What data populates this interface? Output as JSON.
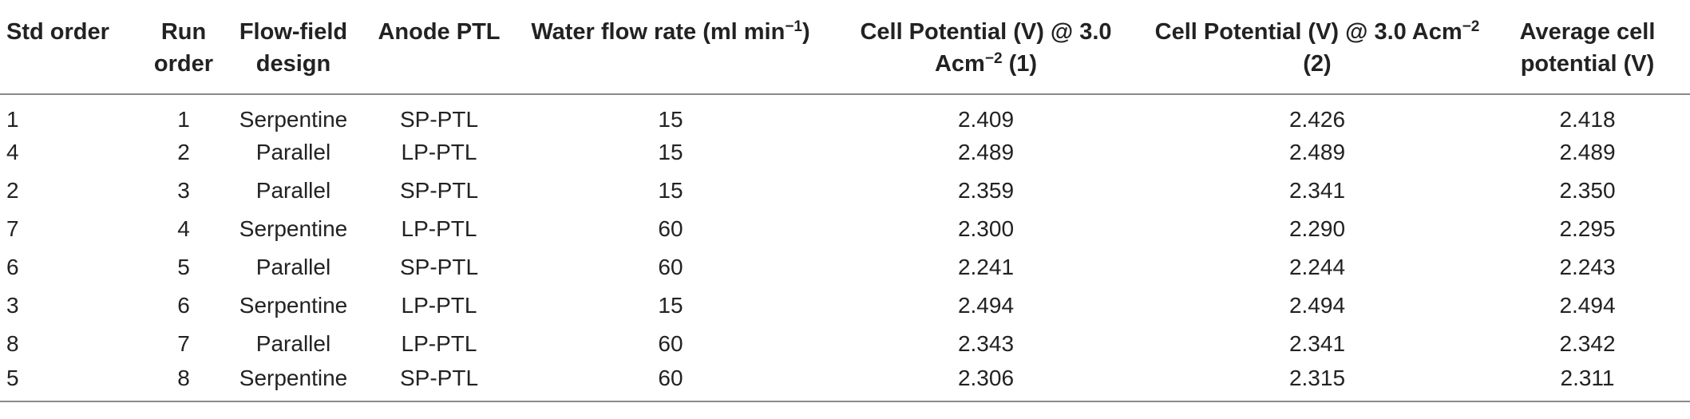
{
  "headers": [
    {
      "text": "Std order",
      "sup": "",
      "after": ""
    },
    {
      "text": "Run order",
      "sup": "",
      "after": ""
    },
    {
      "text": "Flow-field design",
      "sup": "",
      "after": ""
    },
    {
      "text": "Anode PTL",
      "sup": "",
      "after": ""
    },
    {
      "text": "Water flow rate (ml min",
      "sup": "−1",
      "after": ")"
    },
    {
      "text": "Cell Potential (V) @ 3.0 Acm",
      "sup": "−2",
      "after": " (1)"
    },
    {
      "text": "Cell Potential (V) @ 3.0 Acm",
      "sup": "−2",
      "after": " (2)"
    },
    {
      "text": "Average cell potential (V)",
      "sup": "",
      "after": ""
    }
  ],
  "rows": [
    [
      "1",
      "1",
      "Serpentine",
      "SP-PTL",
      "15",
      "2.409",
      "2.426",
      "2.418"
    ],
    [
      "4",
      "2",
      "Parallel",
      "LP-PTL",
      "15",
      "2.489",
      "2.489",
      "2.489"
    ],
    [
      "2",
      "3",
      "Parallel",
      "SP-PTL",
      "15",
      "2.359",
      "2.341",
      "2.350"
    ],
    [
      "7",
      "4",
      "Serpentine",
      "LP-PTL",
      "60",
      "2.300",
      "2.290",
      "2.295"
    ],
    [
      "6",
      "5",
      "Parallel",
      "SP-PTL",
      "60",
      "2.241",
      "2.244",
      "2.243"
    ],
    [
      "3",
      "6",
      "Serpentine",
      "LP-PTL",
      "15",
      "2.494",
      "2.494",
      "2.494"
    ],
    [
      "8",
      "7",
      "Parallel",
      "LP-PTL",
      "60",
      "2.343",
      "2.341",
      "2.342"
    ],
    [
      "5",
      "8",
      "Serpentine",
      "SP-PTL",
      "60",
      "2.306",
      "2.315",
      "2.311"
    ]
  ]
}
